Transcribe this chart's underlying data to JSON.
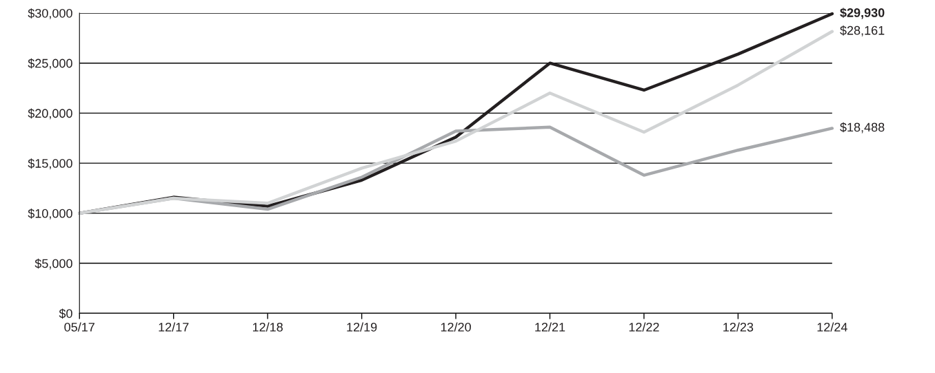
{
  "chart_data": {
    "type": "line",
    "categories": [
      "05/17",
      "12/17",
      "12/18",
      "12/19",
      "12/20",
      "12/21",
      "12/22",
      "12/23",
      "12/24"
    ],
    "series": [
      {
        "color": "#231f20",
        "values": [
          10000,
          11600,
          10700,
          13300,
          17600,
          25000,
          22300,
          25900,
          29930
        ],
        "value_labels": [
          null,
          null,
          null,
          null,
          null,
          null,
          null,
          null,
          "$29,930"
        ]
      },
      {
        "color": "#a7a9ac",
        "values": [
          10000,
          11500,
          10400,
          13600,
          18200,
          18600,
          13800,
          16300,
          18488
        ],
        "value_labels": [
          null,
          null,
          null,
          null,
          null,
          null,
          null,
          null,
          "$18,488"
        ]
      },
      {
        "color": "#d1d3d4",
        "values": [
          10000,
          11500,
          11000,
          14500,
          17200,
          22000,
          18100,
          22800,
          28161
        ],
        "value_labels": [
          null,
          null,
          null,
          null,
          null,
          null,
          null,
          null,
          "$28,161"
        ]
      }
    ],
    "ylim": [
      0,
      30000
    ],
    "yticks": [
      {
        "value": 0,
        "label": "$0"
      },
      {
        "value": 5000,
        "label": "$5,000"
      },
      {
        "value": 10000,
        "label": "$10,000"
      },
      {
        "value": 15000,
        "label": "$15,000"
      },
      {
        "value": 20000,
        "label": "$20,000"
      },
      {
        "value": 25000,
        "label": "$25,000"
      },
      {
        "value": 30000,
        "label": "$30,000"
      }
    ],
    "grid": "y",
    "marker": "none",
    "line_style": "solid"
  }
}
